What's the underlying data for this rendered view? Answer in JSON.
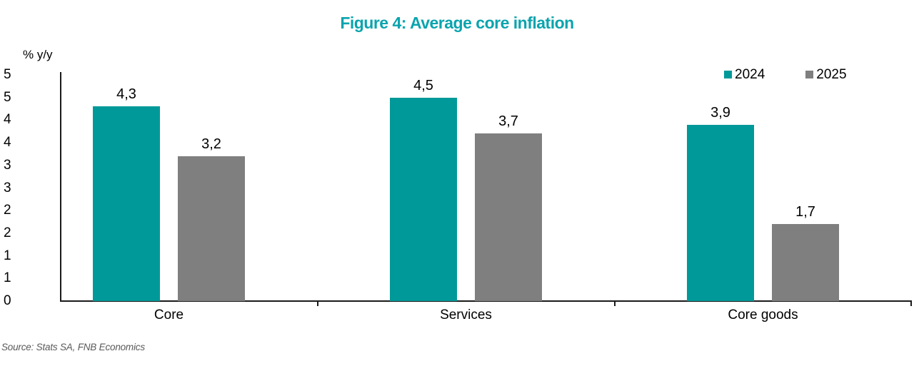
{
  "figure": {
    "source": "Source: Stats SA, FNB Economics"
  },
  "chart_data": {
    "type": "bar",
    "title": "Figure 4: Average core inflation",
    "xlabel": "",
    "ylabel": "% y/y",
    "categories": [
      "Core",
      "Services",
      "Core goods"
    ],
    "series": [
      {
        "name": "2024",
        "color": "#009999",
        "values": [
          4.3,
          4.5,
          3.9
        ],
        "labels": [
          "4,3",
          "4,5",
          "3,9"
        ]
      },
      {
        "name": "2025",
        "color": "#7f7f7f",
        "values": [
          3.2,
          3.7,
          1.7
        ],
        "labels": [
          "3,2",
          "3,7",
          "1,7"
        ]
      }
    ],
    "y_axis": {
      "min": 0,
      "max": 5,
      "tick_step": 0.5,
      "tick_labels_top_to_bottom": [
        "5",
        "5",
        "4",
        "4",
        "3",
        "3",
        "2",
        "2",
        "1",
        "1",
        "0"
      ]
    },
    "legend": {
      "position": "top-right",
      "items": [
        "2024",
        "2025"
      ]
    },
    "grid": false,
    "decimal_separator": ",",
    "data_labels_shown": true
  },
  "colors": {
    "title": "#0aa4ae",
    "series_2024": "#009999",
    "series_2025": "#7f7f7f",
    "axis": "#1a1a1a",
    "source_text": "#595959"
  }
}
